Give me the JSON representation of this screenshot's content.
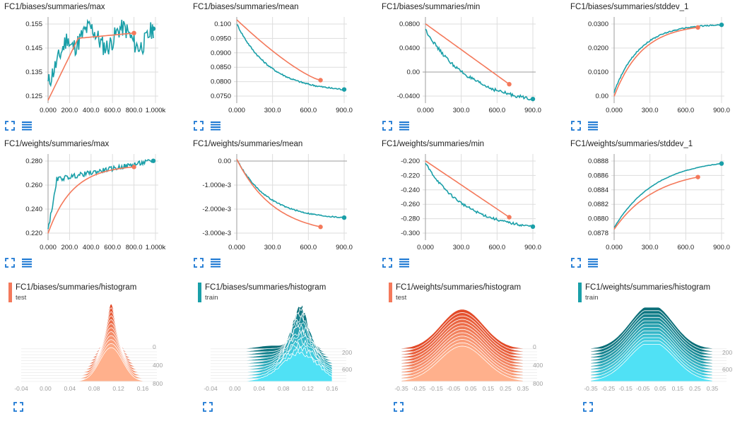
{
  "colors": {
    "test": "#f4795b",
    "train": "#1a9fa8",
    "accent": "#1976d2"
  },
  "icons": {
    "expand": "fullscreen-icon",
    "data": "list-icon"
  },
  "scalars": [
    {
      "title": "FC1/biases/summaries/max",
      "xticks": [
        "0.000",
        "200.0",
        "400.0",
        "600.0",
        "800.0",
        "1.000k"
      ],
      "yticks": [
        "0.125",
        "0.135",
        "0.145",
        "0.155"
      ]
    },
    {
      "title": "FC1/biases/summaries/mean",
      "xticks": [
        "0.000",
        "300.0",
        "600.0",
        "900.0"
      ],
      "yticks": [
        "0.0750",
        "0.0800",
        "0.0850",
        "0.0900",
        "0.0950",
        "0.100"
      ]
    },
    {
      "title": "FC1/biases/summaries/min",
      "xticks": [
        "0.000",
        "300.0",
        "600.0",
        "900.0"
      ],
      "yticks": [
        "-0.0400",
        "0.00",
        "0.0400",
        "0.0800"
      ]
    },
    {
      "title": "FC1/biases/summaries/stddev_1",
      "xticks": [
        "0.000",
        "300.0",
        "600.0",
        "900.0"
      ],
      "yticks": [
        "0.00",
        "0.0100",
        "0.0200",
        "0.0300"
      ]
    },
    {
      "title": "FC1/weights/summaries/max",
      "xticks": [
        "0.000",
        "200.0",
        "400.0",
        "600.0",
        "800.0",
        "1.000k"
      ],
      "yticks": [
        "0.220",
        "0.240",
        "0.260",
        "0.280"
      ]
    },
    {
      "title": "FC1/weights/summaries/mean",
      "xticks": [
        "0.000",
        "300.0",
        "600.0",
        "900.0"
      ],
      "yticks": [
        "-3.000e-3",
        "-2.000e-3",
        "-1.000e-3",
        "0.00"
      ]
    },
    {
      "title": "FC1/weights/summaries/min",
      "xticks": [
        "0.000",
        "300.0",
        "600.0",
        "900.0"
      ],
      "yticks": [
        "-0.300",
        "-0.280",
        "-0.260",
        "-0.240",
        "-0.220",
        "-0.200"
      ]
    },
    {
      "title": "FC1/weights/summaries/stddev_1",
      "xticks": [
        "0.000",
        "300.0",
        "600.0",
        "900.0"
      ],
      "yticks": [
        "0.0878",
        "0.0880",
        "0.0882",
        "0.0884",
        "0.0886",
        "0.0888"
      ]
    }
  ],
  "histograms": [
    {
      "title": "FC1/biases/summaries/histogram",
      "run": "test",
      "xticks": [
        "-0.04",
        "0.00",
        "0.04",
        "0.08",
        "0.12",
        "0.16"
      ],
      "yticks": [
        "0",
        "400",
        "800"
      ]
    },
    {
      "title": "FC1/biases/summaries/histogram",
      "run": "train",
      "xticks": [
        "-0.04",
        "0.00",
        "0.04",
        "0.08",
        "0.12",
        "0.16"
      ],
      "yticks": [
        "200",
        "600"
      ]
    },
    {
      "title": "FC1/weights/summaries/histogram",
      "run": "test",
      "xticks": [
        "-0.35",
        "-0.25",
        "-0.15",
        "-0.05",
        "0.05",
        "0.15",
        "0.25",
        "0.35"
      ],
      "yticks": [
        "0",
        "400",
        "800"
      ]
    },
    {
      "title": "FC1/weights/summaries/histogram",
      "run": "train",
      "xticks": [
        "-0.35",
        "-0.25",
        "-0.15",
        "-0.05",
        "0.05",
        "0.15",
        "0.25",
        "0.35"
      ],
      "yticks": [
        "200",
        "600"
      ]
    }
  ]
}
